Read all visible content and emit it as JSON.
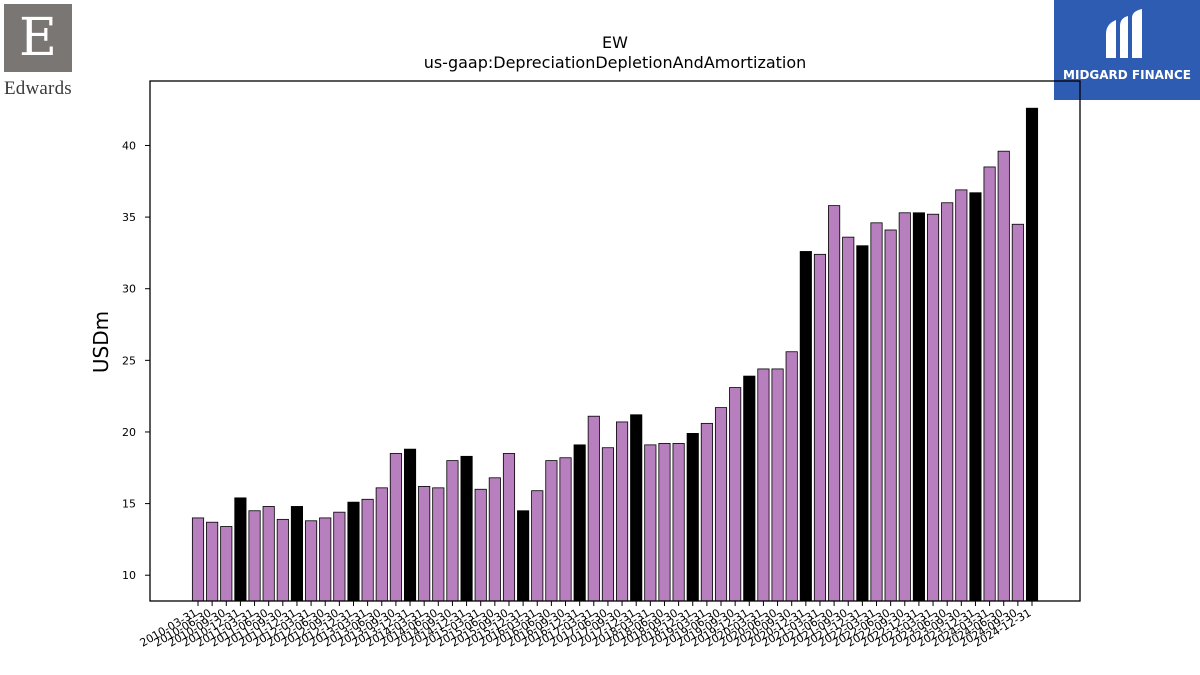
{
  "logos": {
    "left": {
      "letter": "E",
      "name": "Edwards"
    },
    "right": {
      "name": "MIDGARD FINANCE"
    }
  },
  "colors": {
    "bar_main": "#b77fbd",
    "bar_highlight": "#000000",
    "bar_edge": "#000000"
  },
  "chart_data": {
    "type": "bar",
    "title": "EW",
    "subtitle": "us-gaap:DepreciationDepletionAndAmortization",
    "xlabel": "",
    "ylabel": "USDm",
    "ylim": [
      8.2,
      44.5
    ],
    "yticks": [
      10,
      15,
      20,
      25,
      30,
      35,
      40
    ],
    "grid": false,
    "categories": [
      "2010-03-31",
      "2010-06-30",
      "2010-09-30",
      "2010-12-31",
      "2011-03-31",
      "2011-06-30",
      "2011-09-30",
      "2011-12-31",
      "2012-03-31",
      "2012-06-30",
      "2012-09-30",
      "2012-12-31",
      "2013-03-31",
      "2013-06-30",
      "2013-09-30",
      "2013-12-31",
      "2014-03-31",
      "2014-06-30",
      "2014-09-30",
      "2014-12-31",
      "2015-03-31",
      "2015-06-30",
      "2015-09-30",
      "2015-12-31",
      "2016-03-31",
      "2016-06-30",
      "2016-09-30",
      "2016-12-31",
      "2017-03-31",
      "2017-06-30",
      "2017-09-30",
      "2017-12-31",
      "2018-03-31",
      "2018-06-30",
      "2018-09-30",
      "2018-12-31",
      "2019-03-31",
      "2019-06-30",
      "2019-09-30",
      "2019-12-31",
      "2020-03-31",
      "2020-06-30",
      "2020-09-30",
      "2020-12-31",
      "2021-03-31",
      "2021-06-30",
      "2021-09-30",
      "2021-12-31",
      "2022-03-31",
      "2022-06-30",
      "2022-09-30",
      "2022-12-31",
      "2023-03-31",
      "2023-06-30",
      "2023-09-30",
      "2023-12-31",
      "2024-03-31",
      "2024-06-30",
      "2024-09-30",
      "2024-12-31"
    ],
    "values": [
      14.0,
      13.7,
      13.4,
      15.4,
      14.5,
      14.8,
      13.9,
      14.8,
      13.8,
      14.0,
      14.4,
      15.1,
      15.3,
      16.1,
      18.5,
      18.8,
      16.2,
      16.1,
      18.0,
      18.3,
      16.0,
      16.8,
      18.5,
      14.5,
      15.9,
      18.0,
      18.2,
      19.1,
      21.1,
      18.9,
      20.7,
      21.2,
      19.1,
      19.2,
      19.2,
      19.9,
      20.6,
      21.7,
      23.1,
      23.9,
      24.4,
      24.4,
      25.6,
      32.6,
      32.4,
      35.8,
      33.6,
      33.0,
      34.6,
      34.1,
      35.3,
      35.3,
      35.2,
      36.0,
      36.9,
      36.7,
      38.5,
      39.6,
      34.5,
      42.6
    ],
    "highlight": [
      false,
      false,
      false,
      true,
      false,
      false,
      false,
      true,
      false,
      false,
      false,
      true,
      false,
      false,
      false,
      true,
      false,
      false,
      false,
      true,
      false,
      false,
      false,
      true,
      false,
      false,
      false,
      true,
      false,
      false,
      false,
      true,
      false,
      false,
      false,
      true,
      false,
      false,
      false,
      true,
      false,
      false,
      false,
      true,
      false,
      false,
      false,
      true,
      false,
      false,
      false,
      true,
      false,
      false,
      false,
      true,
      false,
      false,
      false,
      true
    ]
  }
}
